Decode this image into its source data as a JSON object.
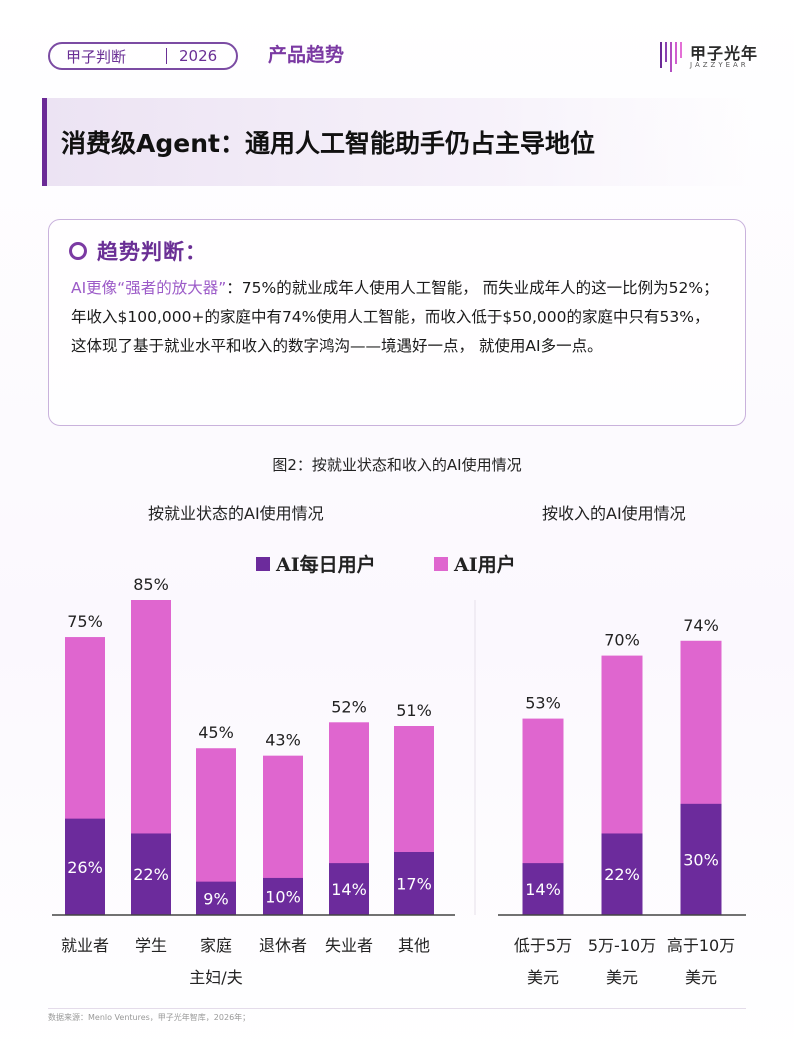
{
  "header": {
    "brand": "甲子判断",
    "year": "2026",
    "category": "产品趋势",
    "logo_cn": "甲子光年",
    "logo_en": "JAZZYEAR"
  },
  "title": "消费级Agent：通用人工智能助手仍占主导地位",
  "trend": {
    "heading": "趋势判断：",
    "highlight": "AI更像“强者的放大器”",
    "body": "：75%的就业成年人使用人工智能， 而失业成年人的这一比例为52%；年收入$100,000+的家庭中有74%使用人工智能，而收入低于$50,000的家庭中只有53%， 这体现了基于就业水平和收入的数字鸿沟——境遇好一点， 就使用AI多一点。"
  },
  "figure_caption": "图2：按就业状态和收入的AI使用情况",
  "legend": {
    "daily": "AI每日用户",
    "user": "AI用户"
  },
  "colors": {
    "daily": "#6c2b9c",
    "user": "#df66cf",
    "axis": "#444444",
    "accent": "#6b2a96"
  },
  "chart_data": [
    {
      "type": "bar",
      "title": "按就业状态的AI使用情况",
      "categories": [
        [
          "就业者"
        ],
        [
          "学生"
        ],
        [
          "家庭",
          "主妇/夫"
        ],
        [
          "退休者"
        ],
        [
          "失业者"
        ],
        [
          "其他"
        ]
      ],
      "series": [
        {
          "name": "AI用户",
          "values": [
            75,
            85,
            45,
            43,
            52,
            51
          ]
        },
        {
          "name": "AI每日用户",
          "values": [
            26,
            22,
            9,
            10,
            14,
            17
          ]
        }
      ],
      "unit": "%",
      "ylim": [
        0,
        85
      ]
    },
    {
      "type": "bar",
      "title": "按收入的AI使用情况",
      "categories": [
        [
          "低于5万",
          "美元"
        ],
        [
          "5万-10万",
          "美元"
        ],
        [
          "高于10万",
          "美元"
        ]
      ],
      "series": [
        {
          "name": "AI用户",
          "values": [
            53,
            70,
            74
          ]
        },
        {
          "name": "AI每日用户",
          "values": [
            14,
            22,
            30
          ]
        }
      ],
      "unit": "%",
      "ylim": [
        0,
        85
      ]
    }
  ],
  "footer": "数据来源：Menlo Ventures，甲子光年智库，2026年；"
}
